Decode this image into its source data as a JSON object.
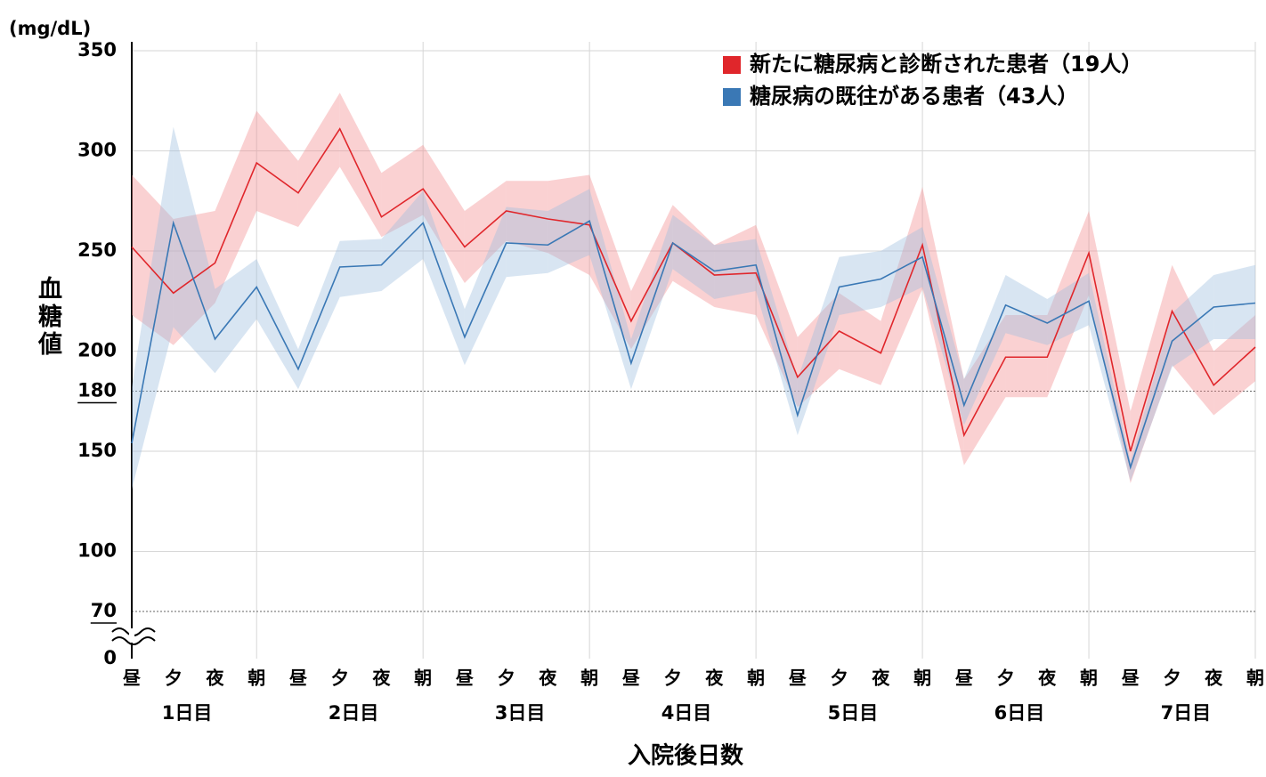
{
  "chart_data": {
    "type": "line_band",
    "y_unit": "(mg/dL)",
    "y_label": "血糖値",
    "x_label": "入院後日数",
    "categories": [
      "昼",
      "夕",
      "夜",
      "朝",
      "昼",
      "夕",
      "夜",
      "朝",
      "昼",
      "夕",
      "夜",
      "朝",
      "昼",
      "夕",
      "夜",
      "朝",
      "昼",
      "夕",
      "夜",
      "朝",
      "昼",
      "夕",
      "夜",
      "朝",
      "昼",
      "夕",
      "夜",
      "朝"
    ],
    "x_groups": [
      "1日目",
      "2日目",
      "3日目",
      "4日目",
      "5日目",
      "6日目",
      "7日目"
    ],
    "ylim": [
      0,
      350
    ],
    "y_break": [
      0,
      58
    ],
    "yticks": [
      0,
      70,
      100,
      150,
      180,
      200,
      250,
      300,
      350
    ],
    "reference_lines": [
      70,
      180
    ],
    "grid": true,
    "legend": "top-right",
    "series": [
      {
        "name": "新たに糖尿病と診断された患者（19人）",
        "color": "#e0262b",
        "band_color": "#f28b8f",
        "values": [
          252,
          229,
          244,
          294,
          279,
          311,
          267,
          281,
          252,
          270,
          266,
          263,
          215,
          254,
          238,
          239,
          187,
          210,
          199,
          253,
          158,
          197,
          197,
          249,
          150,
          220,
          183,
          202
        ],
        "upper": [
          288,
          266,
          270,
          320,
          295,
          329,
          289,
          303,
          270,
          285,
          285,
          288,
          230,
          273,
          253,
          263,
          207,
          229,
          215,
          282,
          186,
          218,
          218,
          270,
          170,
          243,
          200,
          218
        ],
        "lower": [
          218,
          203,
          224,
          270,
          262,
          292,
          257,
          268,
          234,
          255,
          249,
          238,
          201,
          235,
          222,
          218,
          172,
          191,
          183,
          231,
          143,
          177,
          177,
          228,
          134,
          193,
          168,
          185
        ]
      },
      {
        "name": "糖尿病の既往がある患者（43人）",
        "color": "#3a78b5",
        "band_color": "#9dbedf",
        "values": [
          154,
          264,
          206,
          232,
          191,
          242,
          243,
          264,
          207,
          254,
          253,
          265,
          194,
          254,
          240,
          243,
          168,
          232,
          236,
          247,
          173,
          223,
          214,
          225,
          142,
          205,
          222,
          224
        ],
        "upper": [
          182,
          312,
          231,
          246,
          201,
          255,
          256,
          280,
          221,
          272,
          270,
          281,
          206,
          268,
          253,
          256,
          186,
          247,
          250,
          262,
          186,
          238,
          226,
          239,
          145,
          219,
          238,
          243
        ],
        "lower": [
          131,
          212,
          189,
          216,
          181,
          227,
          230,
          246,
          193,
          237,
          239,
          248,
          181,
          241,
          226,
          230,
          158,
          218,
          222,
          232,
          163,
          209,
          203,
          213,
          135,
          192,
          206,
          206
        ]
      }
    ]
  }
}
